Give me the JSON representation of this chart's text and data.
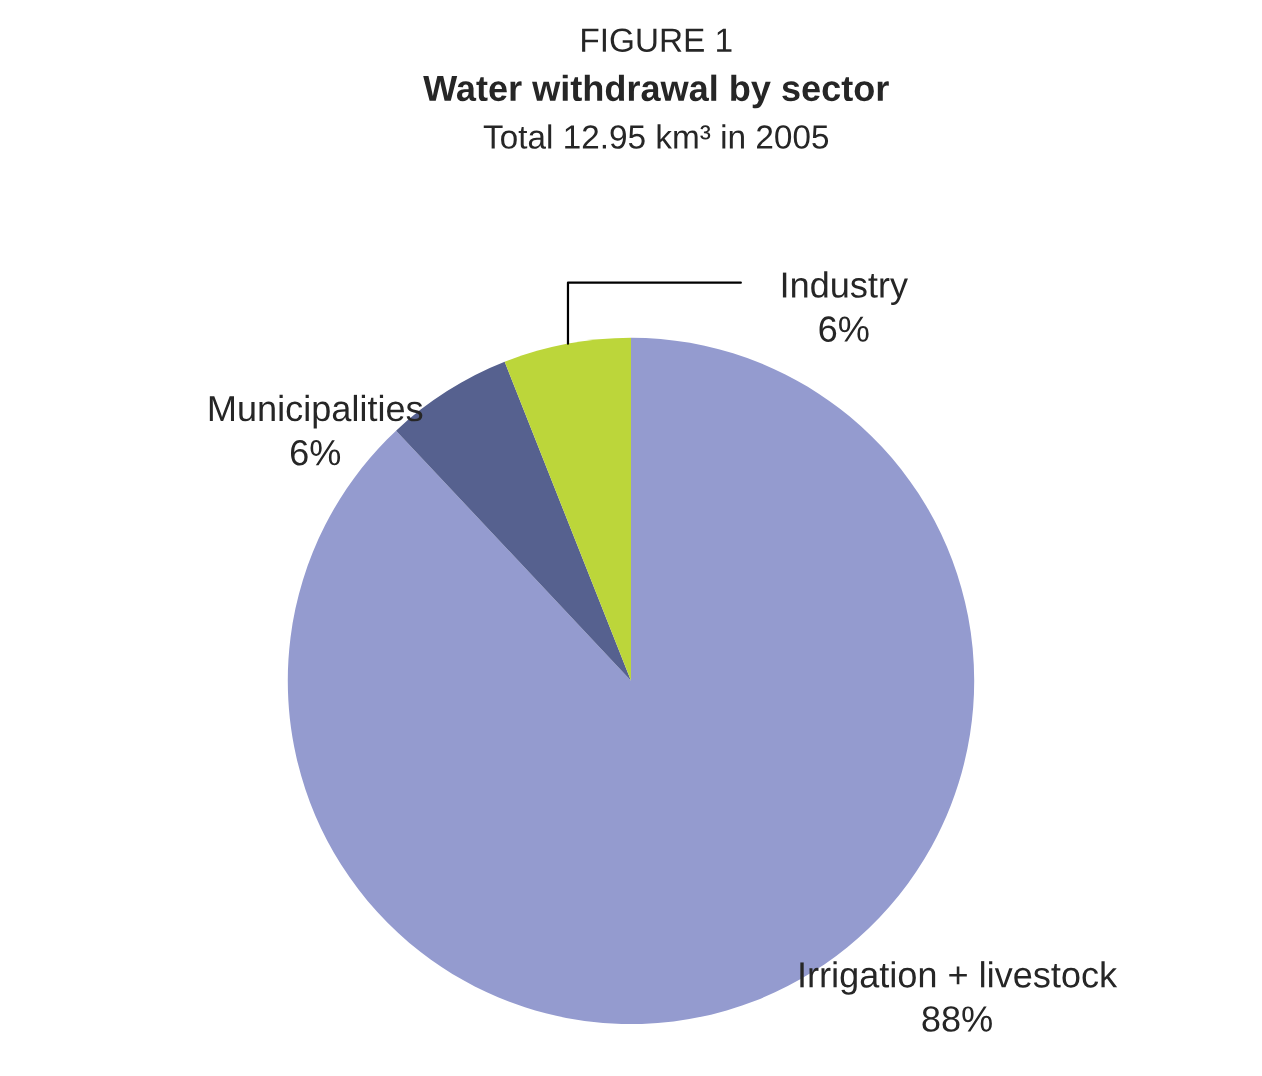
{
  "chart_data": {
    "type": "pie",
    "title": "Water withdrawal by sector",
    "subtitle": "Total 12.95 km³ in 2005",
    "annotations": [
      "FIGURE 1"
    ],
    "categories": [
      "Irrigation + livestock",
      "Municipalities",
      "Industry"
    ],
    "values": [
      88,
      6,
      6
    ],
    "value_labels": [
      "88%",
      "6%",
      "6%"
    ],
    "colors": [
      "#949bcf",
      "#56618f",
      "#bcd63a"
    ]
  }
}
